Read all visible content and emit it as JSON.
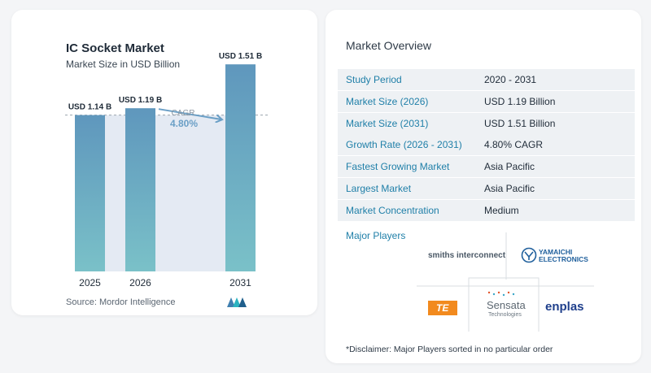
{
  "chart_data": {
    "type": "bar",
    "title": "IC Socket Market",
    "subtitle": "Market Size in USD Billion",
    "categories": [
      "2025",
      "2026",
      "2031"
    ],
    "values": [
      1.14,
      1.19,
      1.51
    ],
    "data_labels": [
      "USD 1.14 B",
      "USD 1.19 B",
      "USD 1.51 B"
    ],
    "cagr_label": "CAGR",
    "cagr_value": "4.80%",
    "ylim": [
      0,
      1.6
    ],
    "grid": false
  },
  "source_text": "Source:  Mordor Intelligence",
  "colors": {
    "bar_top": "#5f97bd",
    "bar_bottom": "#7ac1c8",
    "band": "#e4eaf3",
    "arrow": "#6a9fc6"
  },
  "overview": {
    "title": "Market Overview",
    "rows": [
      {
        "key": "Study Period",
        "value": "2020 - 2031"
      },
      {
        "key": "Market Size (2026)",
        "value": "USD 1.19 Billion"
      },
      {
        "key": "Market Size (2031)",
        "value": "USD 1.51 Billion"
      },
      {
        "key": "Growth Rate (2026 - 2031)",
        "value": "4.80% CAGR"
      },
      {
        "key": "Fastest Growing Market",
        "value": "Asia Pacific"
      },
      {
        "key": "Largest Market",
        "value": "Asia Pacific"
      },
      {
        "key": "Market Concentration",
        "value": "Medium"
      }
    ]
  },
  "major_players": {
    "title": "Major Players",
    "logos": {
      "smiths": "smiths interconnect",
      "yamaichi_1": "YAMAICHI",
      "yamaichi_2": "ELECTRONICS",
      "te": "TE",
      "sensata_1": "Sensata",
      "sensata_2": "Technologies",
      "enplas": "enplas"
    }
  },
  "disclaimer": "*Disclaimer: Major Players sorted in no particular order"
}
